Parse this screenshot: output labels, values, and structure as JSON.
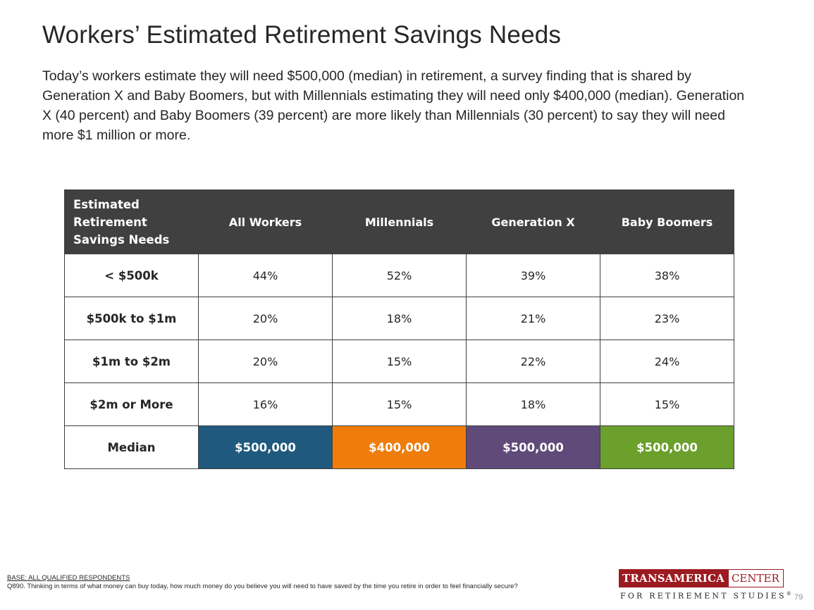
{
  "title": "Workers’ Estimated Retirement Savings Needs",
  "subtitle": "Today’s workers estimate they will need $500,000 (median) in retirement, a survey finding that is shared by Generation X and Baby Boomers, but with Millennials estimating they will need only $400,000 (median). Generation X (40 percent) and Baby Boomers (39 percent) are more likely than Millennials (30 percent) to say they will need more $1 million or more.",
  "table": {
    "corner_header": "Estimated Retirement Savings Needs",
    "columns": [
      "All Workers",
      "Millennials",
      "Generation X",
      "Baby Boomers"
    ],
    "rows": [
      {
        "label": "< $500k",
        "values": [
          "44%",
          "52%",
          "39%",
          "38%"
        ]
      },
      {
        "label": "$500k to $1m",
        "values": [
          "20%",
          "18%",
          "21%",
          "23%"
        ]
      },
      {
        "label": "$1m to $2m",
        "values": [
          "20%",
          "15%",
          "22%",
          "24%"
        ]
      },
      {
        "label": "$2m or More",
        "values": [
          "16%",
          "15%",
          "18%",
          "15%"
        ]
      }
    ],
    "median": {
      "label": "Median",
      "values": [
        "$500,000",
        "$400,000",
        "$500,000",
        "$500,000"
      ],
      "colors": [
        "#1f5a7e",
        "#ef7d0b",
        "#5f4a7a",
        "#6aa02b"
      ]
    }
  },
  "footnote": {
    "base": "BASE:  ALL QUALIFIED RESPONDENTS",
    "question": "Q890. Thinking in terms of what money can buy today, how much money do you believe you will need to have saved by the time you retire in order to feel financially secure?"
  },
  "logo": {
    "left_text": "TRANSAMERICA",
    "right_text": "CENTER",
    "bottom_text": "FOR RETIREMENT STUDIES",
    "trademark": "®",
    "brand_color": "#9b1b20"
  },
  "page_number": "79"
}
